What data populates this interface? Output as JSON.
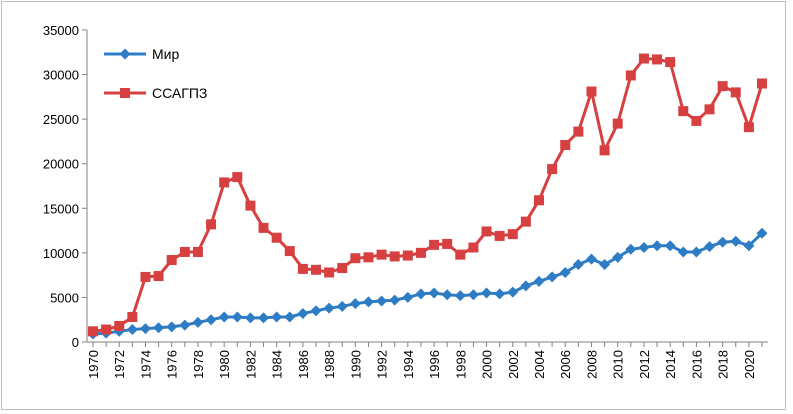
{
  "chart_data": {
    "type": "line",
    "title": "",
    "xlabel": "",
    "ylabel": "",
    "x": [
      1970,
      1971,
      1972,
      1973,
      1974,
      1975,
      1976,
      1977,
      1978,
      1979,
      1980,
      1981,
      1982,
      1983,
      1984,
      1985,
      1986,
      1987,
      1988,
      1989,
      1990,
      1991,
      1992,
      1993,
      1994,
      1995,
      1996,
      1997,
      1998,
      1999,
      2000,
      2001,
      2002,
      2003,
      2004,
      2005,
      2006,
      2007,
      2008,
      2009,
      2010,
      2011,
      2012,
      2013,
      2014,
      2015,
      2016,
      2017,
      2018,
      2019,
      2020,
      2021
    ],
    "x_tick_labels": [
      "1970",
      "1972",
      "1974",
      "1976",
      "1978",
      "1980",
      "1982",
      "1984",
      "1986",
      "1988",
      "1990",
      "1992",
      "1994",
      "1996",
      "1998",
      "2000",
      "2002",
      "2004",
      "2006",
      "2008",
      "2010",
      "2012",
      "2014",
      "2016",
      "2018",
      "2020"
    ],
    "y_tick_labels": [
      "0",
      "5000",
      "10000",
      "15000",
      "20000",
      "25000",
      "30000",
      "35000"
    ],
    "ylim": [
      0,
      35000
    ],
    "grid": false,
    "legend_position": "top-left",
    "series": [
      {
        "name": "Мир",
        "color": "#2e7dc4",
        "marker": "diamond",
        "values": [
          900,
          1000,
          1200,
          1400,
          1500,
          1600,
          1700,
          1900,
          2200,
          2500,
          2800,
          2800,
          2700,
          2700,
          2800,
          2800,
          3200,
          3500,
          3800,
          4000,
          4300,
          4500,
          4600,
          4700,
          5000,
          5400,
          5500,
          5300,
          5200,
          5300,
          5500,
          5400,
          5600,
          6300,
          6800,
          7300,
          7800,
          8700,
          9300,
          8700,
          9500,
          10400,
          10600,
          10800,
          10800,
          10100,
          10100,
          10700,
          11200,
          11300,
          10800,
          12200
        ]
      },
      {
        "name": "ССАГПЗ",
        "color": "#d64040",
        "marker": "square",
        "values": [
          1200,
          1400,
          1800,
          2800,
          7300,
          7400,
          9200,
          10100,
          10100,
          13200,
          17900,
          18500,
          15300,
          12800,
          11700,
          10200,
          8200,
          8100,
          7800,
          8300,
          9400,
          9500,
          9800,
          9600,
          9700,
          10000,
          10900,
          11000,
          9800,
          10600,
          12400,
          11900,
          12100,
          13500,
          15900,
          19400,
          22100,
          23600,
          28100,
          21500,
          24500,
          29900,
          31800,
          31700,
          31400,
          25900,
          24800,
          26100,
          28700,
          28000,
          24100,
          29000
        ]
      }
    ]
  }
}
